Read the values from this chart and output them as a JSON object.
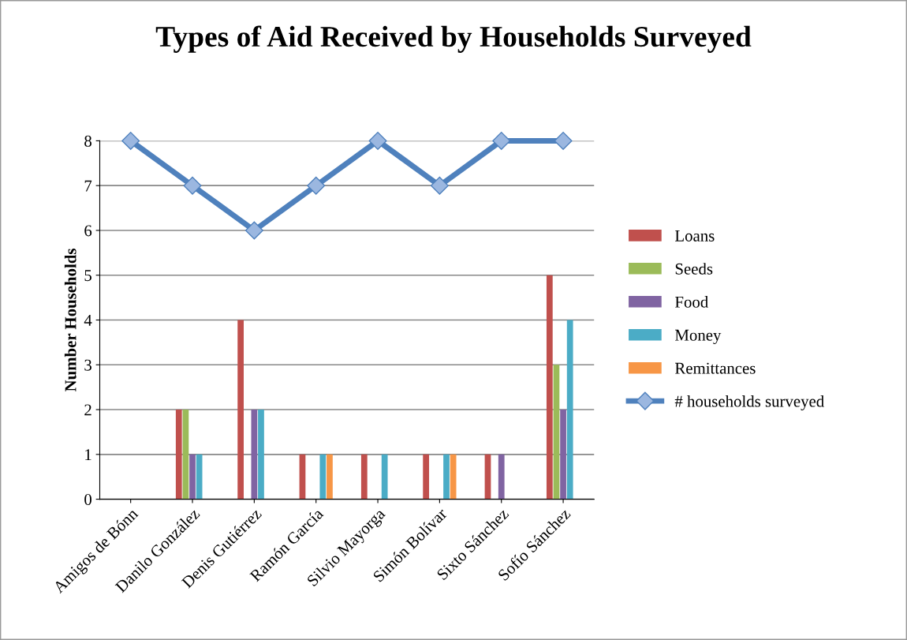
{
  "chart_data": {
    "type": "bar",
    "title": "Types of Aid Received by Households Surveyed",
    "ylabel": "Number Households",
    "categories": [
      "Amigos de Bónn",
      "Danilo González",
      "Denis Gutiérrez",
      "Ramón García",
      "Silvio Mayorga",
      "Simón Bolívar",
      "Sixto Sánchez",
      "Sofío Sánchez"
    ],
    "series": [
      {
        "name": "Loans",
        "color": "#c0504d",
        "values": [
          0,
          2,
          4,
          1,
          1,
          1,
          1,
          5
        ]
      },
      {
        "name": "Seeds",
        "color": "#9bbb59",
        "values": [
          0,
          2,
          0,
          0,
          0,
          0,
          0,
          3
        ]
      },
      {
        "name": "Food",
        "color": "#8064a2",
        "values": [
          0,
          1,
          2,
          0,
          0,
          0,
          1,
          2
        ]
      },
      {
        "name": "Money",
        "color": "#4bacc6",
        "values": [
          0,
          1,
          2,
          1,
          1,
          1,
          0,
          4
        ]
      },
      {
        "name": "Remittances",
        "color": "#f79646",
        "values": [
          0,
          0,
          0,
          1,
          0,
          1,
          0,
          0
        ]
      },
      {
        "name": "# households surveyed",
        "color": "#4f81bd",
        "type": "line",
        "marker": "diamond",
        "line_style": "solid",
        "values": [
          8,
          7,
          6,
          7,
          8,
          7,
          8,
          8
        ]
      }
    ],
    "ylim": [
      0,
      8
    ],
    "yticks": [
      0,
      1,
      2,
      3,
      4,
      5,
      6,
      7,
      8
    ],
    "grid": "y",
    "legend": "right"
  }
}
